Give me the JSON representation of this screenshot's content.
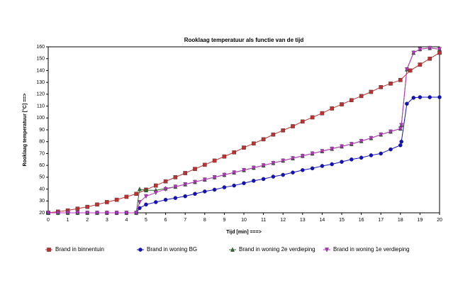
{
  "chart_data": {
    "type": "line",
    "title": "Rooklaag temperatuur  als functie van de tijd",
    "x_label": "Tijd [min] ===>",
    "y_label": "Rooklaag temperatuur [°C] ==>",
    "xlim": [
      0,
      20
    ],
    "xticks": [
      0,
      1,
      2,
      3,
      4,
      5,
      6,
      7,
      8,
      9,
      10,
      11,
      12,
      13,
      14,
      15,
      16,
      17,
      18,
      19,
      20
    ],
    "ylim": [
      20,
      160
    ],
    "yticks": [
      20,
      30,
      40,
      50,
      60,
      70,
      80,
      90,
      100,
      110,
      120,
      130,
      140,
      150,
      160
    ],
    "grid": false,
    "series": [
      {
        "name": "Brand in binnentuin",
        "color": "#c03030",
        "marker": "square",
        "x": [
          0,
          0.5,
          1,
          1.5,
          2,
          2.5,
          3,
          3.5,
          4,
          4.5,
          5,
          5.5,
          6,
          6.5,
          7,
          7.5,
          8,
          8.5,
          9,
          9.5,
          10,
          10.5,
          11,
          11.5,
          12,
          12.5,
          13,
          13.5,
          14,
          14.5,
          15,
          15.5,
          16,
          16.5,
          17,
          17.5,
          18,
          18.5,
          19,
          19.5,
          20
        ],
        "values": [
          20,
          21,
          22,
          23.5,
          25,
          27,
          29,
          31,
          33.5,
          36,
          39.5,
          43,
          46.5,
          50,
          53.5,
          57,
          60.5,
          64,
          67.5,
          71,
          75,
          78.5,
          82,
          86,
          89.5,
          93,
          97,
          100.5,
          104,
          108,
          111.5,
          115,
          118.5,
          122,
          126,
          129,
          132,
          140,
          145,
          150,
          155
        ]
      },
      {
        "name": "Brand in woning BG",
        "color": "#1010c0",
        "marker": "circle",
        "x": [
          0,
          0.5,
          1,
          1.5,
          2,
          2.5,
          3,
          3.5,
          4,
          4.5,
          4.67,
          5,
          5.5,
          6,
          6.5,
          7,
          7.5,
          8,
          8.5,
          9,
          9.5,
          10,
          10.5,
          11,
          11.5,
          12,
          12.5,
          13,
          13.5,
          14,
          14.5,
          15,
          15.5,
          16,
          16.5,
          17,
          17.5,
          18,
          18.05,
          18.33,
          18.67,
          19,
          19.5,
          20
        ],
        "values": [
          20,
          20,
          20,
          20,
          20,
          20,
          20,
          20,
          20,
          20,
          24,
          27,
          29,
          31,
          32.5,
          34,
          36,
          38,
          39.5,
          41.5,
          43,
          45,
          47,
          48.5,
          50.5,
          52,
          54,
          56,
          57.5,
          59.5,
          61,
          63,
          65,
          66.5,
          68.5,
          70,
          73.5,
          77,
          80,
          112,
          117,
          117.5,
          117.5,
          117.5
        ]
      },
      {
        "name": "Brand in woning 2e verdieping",
        "color": "#2e6b2e",
        "marker": "triangle",
        "x": [
          0,
          0.5,
          1,
          1.5,
          2,
          2.5,
          3,
          3.5,
          4,
          4.5,
          4.67,
          5,
          5.5,
          6,
          6.5,
          7,
          7.5,
          8,
          8.5,
          9,
          9.5,
          10,
          10.5,
          11,
          11.5,
          12,
          12.5,
          13,
          13.5,
          14,
          14.5,
          15,
          15.5,
          16,
          16.5,
          17,
          17.5,
          18,
          18.05,
          18.33,
          18.67,
          19,
          19.5,
          20
        ],
        "values": [
          20,
          20,
          20,
          20,
          20,
          20,
          20,
          20,
          20,
          20,
          40,
          39,
          39,
          40.5,
          42,
          44,
          46,
          48,
          50,
          52,
          54,
          56,
          58,
          60,
          62,
          64,
          66,
          68,
          70,
          72,
          74,
          76,
          78,
          80.5,
          83,
          86,
          88.5,
          91,
          94,
          141,
          155,
          158,
          159,
          158
        ]
      },
      {
        "name": "Brand in woning 1e verdieping",
        "color": "#c030c8",
        "marker": "triangle-down",
        "x": [
          0,
          0.5,
          1,
          1.5,
          2,
          2.5,
          3,
          3.5,
          4,
          4.5,
          4.67,
          5,
          5.5,
          6,
          6.5,
          7,
          7.5,
          8,
          8.5,
          9,
          9.5,
          10,
          10.5,
          11,
          11.5,
          12,
          12.5,
          13,
          13.5,
          14,
          14.5,
          15,
          15.5,
          16,
          16.5,
          17,
          17.5,
          18,
          18.05,
          18.33,
          18.67,
          19,
          19.5,
          20
        ],
        "values": [
          20,
          20,
          20,
          20,
          20,
          20,
          20,
          20,
          20,
          20,
          29,
          34,
          37,
          40,
          42,
          44,
          46,
          48,
          50,
          52,
          54,
          56,
          58,
          60,
          62,
          64,
          66,
          68,
          70,
          72,
          74,
          76,
          78,
          80.5,
          83,
          86,
          88.5,
          91,
          94,
          141,
          155,
          158,
          159,
          158
        ]
      }
    ]
  }
}
